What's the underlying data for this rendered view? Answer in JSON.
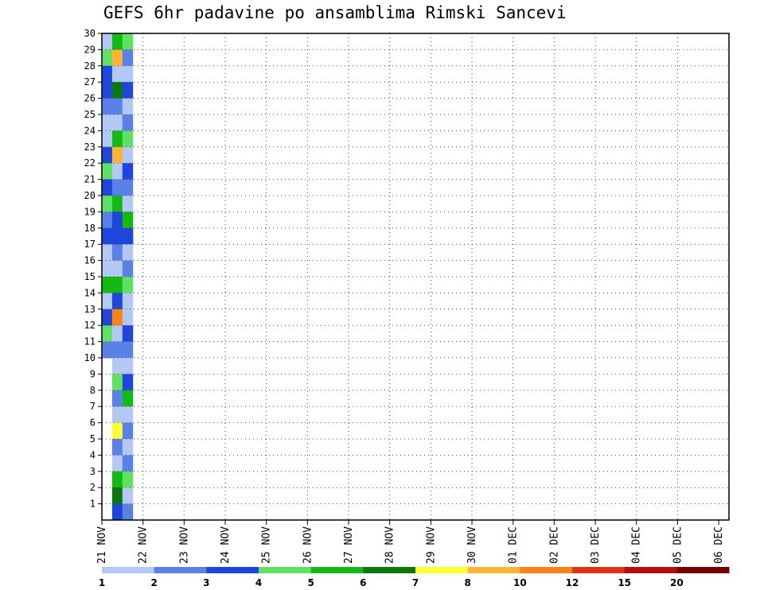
{
  "chart_data": {
    "type": "heatmap",
    "title": "GEFS 6hr padavine po ansamblima Rimski Sancevi",
    "x_tick_labels": [
      "21 NOV",
      "22 NOV",
      "23 NOV",
      "24 NOV",
      "25 NOV",
      "26 NOV",
      "27 NOV",
      "28 NOV",
      "29 NOV",
      "30 NOV",
      "01 DEC",
      "02 DEC",
      "03 DEC",
      "04 DEC",
      "05 DEC",
      "06 DEC"
    ],
    "y_tick_labels": [
      "1",
      "2",
      "3",
      "4",
      "5",
      "6",
      "7",
      "8",
      "9",
      "10",
      "11",
      "12",
      "13",
      "14",
      "15",
      "16",
      "17",
      "18",
      "19",
      "20",
      "21",
      "22",
      "23",
      "24",
      "25",
      "26",
      "27",
      "28",
      "29",
      "30"
    ],
    "xlim_steps": [
      0,
      61
    ],
    "ylim": [
      0,
      30
    ],
    "grid": true,
    "colorbar": {
      "levels": [
        "1",
        "2",
        "3",
        "4",
        "5",
        "6",
        "7",
        "8",
        "10",
        "12",
        "15",
        "20"
      ],
      "colors": [
        "#b4c8f5",
        "#5a82e6",
        "#1e46dc",
        "#5fe164",
        "#14b914",
        "#0a780a",
        "#ffff32",
        "#ffb432",
        "#ff8214",
        "#e13214",
        "#b40f0f",
        "#780000"
      ]
    },
    "cells": [
      [
        0,
        30,
        1,
        1
      ],
      [
        0,
        29,
        1,
        4
      ],
      [
        0,
        28,
        1,
        3
      ],
      [
        0,
        27,
        1,
        3
      ],
      [
        0,
        26,
        2,
        2
      ],
      [
        0,
        25,
        2,
        1
      ],
      [
        0,
        24,
        1,
        1
      ],
      [
        0,
        23,
        1,
        3
      ],
      [
        0,
        22,
        1,
        4
      ],
      [
        0,
        21,
        1,
        3
      ],
      [
        0,
        20,
        1,
        4
      ],
      [
        0,
        19,
        1,
        2
      ],
      [
        0,
        18,
        1,
        3
      ],
      [
        0,
        17,
        1,
        1
      ],
      [
        0,
        16,
        2,
        1
      ],
      [
        0,
        15,
        1,
        5
      ],
      [
        0,
        14,
        1,
        1
      ],
      [
        0,
        13,
        1,
        3
      ],
      [
        0,
        12,
        1,
        4
      ],
      [
        0,
        11,
        1,
        2
      ],
      [
        1,
        30,
        1,
        5
      ],
      [
        1,
        29,
        1,
        8
      ],
      [
        1,
        28,
        1,
        1
      ],
      [
        1,
        27,
        1,
        6
      ],
      [
        1,
        26,
        1,
        2
      ],
      [
        1,
        25,
        1,
        1
      ],
      [
        1,
        24,
        1,
        5
      ],
      [
        1,
        23,
        1,
        8
      ],
      [
        1,
        22,
        1,
        1
      ],
      [
        1,
        21,
        1,
        2
      ],
      [
        1,
        20,
        1,
        5
      ],
      [
        1,
        19,
        1,
        3
      ],
      [
        1,
        18,
        2,
        3
      ],
      [
        1,
        17,
        1,
        2
      ],
      [
        1,
        16,
        1,
        1
      ],
      [
        1,
        15,
        1,
        5
      ],
      [
        1,
        14,
        1,
        3
      ],
      [
        1,
        13,
        1,
        9
      ],
      [
        1,
        12,
        1,
        1
      ],
      [
        1,
        11,
        1,
        2
      ],
      [
        1,
        10,
        1,
        1
      ],
      [
        1,
        9,
        1,
        4
      ],
      [
        1,
        8,
        1,
        2
      ],
      [
        1,
        7,
        1,
        1
      ],
      [
        1,
        6,
        1,
        7
      ],
      [
        1,
        5,
        1,
        2
      ],
      [
        1,
        4,
        1,
        1
      ],
      [
        1,
        3,
        1,
        5
      ],
      [
        1,
        2,
        1,
        6
      ],
      [
        1,
        1,
        1,
        3
      ],
      [
        2,
        30,
        1,
        4
      ],
      [
        2,
        29,
        1,
        2
      ],
      [
        2,
        28,
        1,
        1
      ],
      [
        2,
        27,
        1,
        3
      ],
      [
        2,
        26,
        1,
        1
      ],
      [
        2,
        25,
        1,
        2
      ],
      [
        2,
        24,
        1,
        4
      ],
      [
        2,
        23,
        1,
        1
      ],
      [
        2,
        22,
        1,
        3
      ],
      [
        2,
        21,
        1,
        2
      ],
      [
        2,
        20,
        1,
        1
      ],
      [
        2,
        19,
        1,
        5
      ],
      [
        2,
        18,
        1,
        3
      ],
      [
        2,
        17,
        1,
        1
      ],
      [
        2,
        16,
        1,
        2
      ],
      [
        2,
        15,
        1,
        4
      ],
      [
        2,
        14,
        1,
        1
      ],
      [
        2,
        13,
        1,
        1
      ],
      [
        2,
        12,
        1,
        3
      ],
      [
        2,
        11,
        1,
        2
      ],
      [
        2,
        10,
        1,
        1
      ],
      [
        2,
        9,
        1,
        3
      ],
      [
        2,
        8,
        1,
        5
      ],
      [
        2,
        7,
        1,
        1
      ],
      [
        2,
        6,
        1,
        2
      ],
      [
        2,
        5,
        1,
        1
      ],
      [
        2,
        4,
        1,
        2
      ],
      [
        2,
        3,
        1,
        4
      ],
      [
        2,
        2,
        1,
        1
      ],
      [
        2,
        1,
        1,
        2
      ]
    ]
  }
}
